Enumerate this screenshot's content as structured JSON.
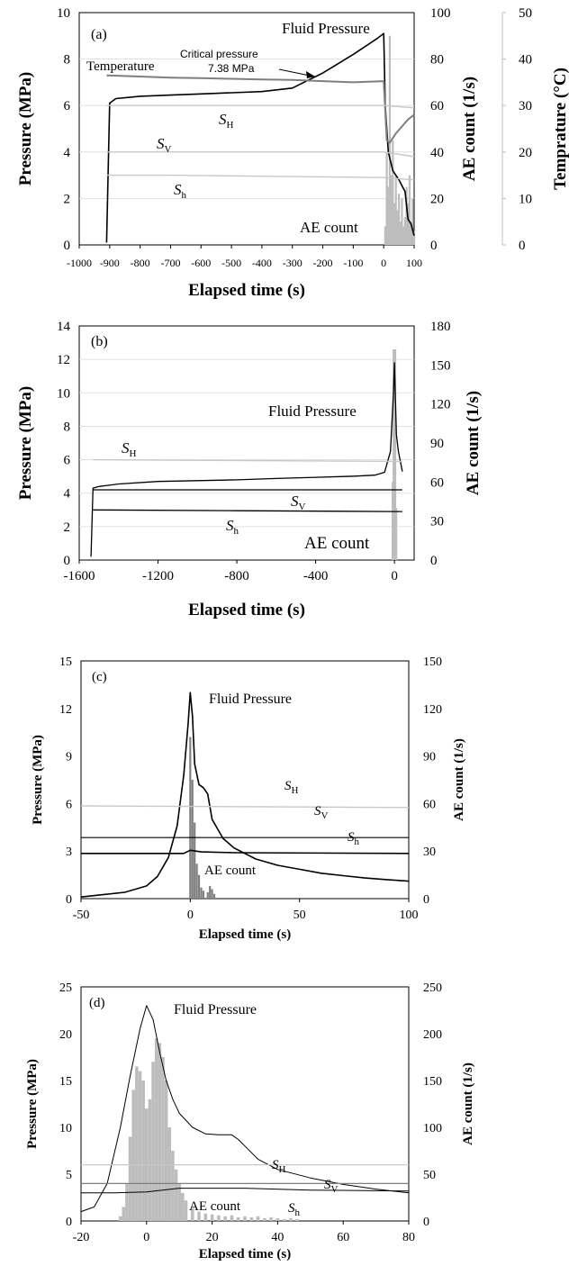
{
  "chart_data": [
    {
      "type": "line",
      "panel": "(a)",
      "xlabel": "Elapsed time (s)",
      "ylabel": "Pressure (MPa)",
      "y2label": "AE count (1/s)",
      "y3label": "Temprature (°C)",
      "xlim": [
        -1000,
        100
      ],
      "ylim": [
        0,
        10
      ],
      "y2lim": [
        0,
        100
      ],
      "y3lim": [
        0,
        50
      ],
      "xticks": [
        "-1000",
        "-900",
        "-800",
        "-700",
        "-600",
        "-500",
        "-400",
        "-300",
        "-200",
        "-100",
        "0",
        "100"
      ],
      "yticks": [
        "0",
        "2",
        "4",
        "6",
        "8",
        "10"
      ],
      "y2ticks": [
        "0",
        "20",
        "40",
        "60",
        "80",
        "100"
      ],
      "y3ticks": [
        "0",
        "10",
        "20",
        "30",
        "40",
        "50"
      ],
      "annotations": {
        "fluid": "Fluid Pressure",
        "temperature": "Temperature",
        "critical": "Critical pressure",
        "critical_value": "7.38 MPa",
        "SH_main": "S",
        "SH_sub": "H",
        "SV_main": "S",
        "SV_sub": "V",
        "Sh_main": "S",
        "Sh_sub": "h",
        "ae": "AE count"
      },
      "series": [
        {
          "key": "fluid",
          "color": "#000000",
          "x": [
            -910,
            -900,
            -880,
            -800,
            -700,
            -600,
            -500,
            -400,
            -300,
            -200,
            -100,
            -20,
            0,
            5,
            15,
            30,
            50,
            70,
            80,
            90,
            100
          ],
          "y": [
            0.1,
            6.1,
            6.3,
            6.4,
            6.45,
            6.5,
            6.55,
            6.6,
            6.75,
            7.4,
            8.2,
            8.9,
            9.1,
            6.0,
            4.0,
            3.2,
            2.8,
            2.3,
            1.1,
            0.9,
            0.4
          ]
        },
        {
          "key": "temperature",
          "color": "#7f7f7f",
          "x": [
            -910,
            -800,
            -700,
            -600,
            -500,
            -400,
            -300,
            -200,
            -100,
            0,
            10,
            20,
            40,
            60,
            80,
            100
          ],
          "y": [
            7.3,
            7.25,
            7.2,
            7.18,
            7.15,
            7.12,
            7.1,
            7.05,
            7.0,
            7.05,
            4.5,
            4.4,
            4.8,
            5.1,
            5.4,
            5.6
          ]
        },
        {
          "key": "SH",
          "color": "#c8c8c8",
          "x": [
            -910,
            0,
            100
          ],
          "y": [
            6.0,
            6.0,
            5.9
          ]
        },
        {
          "key": "SV",
          "color": "#c8c8c8",
          "x": [
            -910,
            0,
            100
          ],
          "y": [
            4.0,
            4.0,
            3.8
          ]
        },
        {
          "key": "Sh",
          "color": "#c8c8c8",
          "x": [
            -910,
            -700,
            0,
            100
          ],
          "y": [
            3.0,
            3.0,
            2.9,
            2.8
          ]
        }
      ],
      "ae": {
        "x": [
          5,
          10,
          15,
          20,
          25,
          30,
          35,
          40,
          45,
          50,
          55,
          60,
          65,
          70,
          75,
          80,
          85,
          90,
          95,
          100
        ],
        "y": [
          8,
          40,
          25,
          90,
          30,
          45,
          18,
          30,
          15,
          22,
          10,
          20,
          8,
          12,
          25,
          18,
          30,
          10,
          20,
          6
        ]
      }
    },
    {
      "type": "line",
      "panel": "(b)",
      "xlabel": "Elapsed time (s)",
      "ylabel": "Pressure (MPa)",
      "y2label": "AE count (1/s)",
      "xlim": [
        -1600,
        100
      ],
      "ylim": [
        0,
        14
      ],
      "y2lim": [
        0,
        180
      ],
      "xticks": [
        "-1600",
        "-1200",
        "-800",
        "-400",
        "0"
      ],
      "yticks": [
        "0",
        "2",
        "4",
        "6",
        "8",
        "10",
        "12",
        "14"
      ],
      "y2ticks": [
        "0",
        "30",
        "60",
        "90",
        "120",
        "150",
        "180"
      ],
      "annotations": {
        "fluid": "Fluid Pressure",
        "SH_main": "S",
        "SH_sub": "H",
        "SV_main": "S",
        "SV_sub": "V",
        "Sh_main": "S",
        "Sh_sub": "h",
        "ae": "AE count"
      },
      "series": [
        {
          "key": "fluid",
          "color": "#000000",
          "x": [
            -1540,
            -1530,
            -1500,
            -1400,
            -1200,
            -1000,
            -800,
            -600,
            -400,
            -200,
            -100,
            -50,
            -20,
            -5,
            0,
            10,
            20,
            40
          ],
          "y": [
            0.2,
            4.3,
            4.4,
            4.55,
            4.7,
            4.75,
            4.8,
            4.88,
            4.95,
            5.02,
            5.08,
            5.25,
            6.5,
            10.0,
            11.8,
            7.5,
            6.5,
            5.3
          ]
        },
        {
          "key": "SV",
          "color": "#000000",
          "x": [
            -1530,
            40
          ],
          "y": [
            4.2,
            4.2
          ]
        },
        {
          "key": "Sh",
          "color": "#000000",
          "x": [
            -1530,
            -800,
            0,
            40
          ],
          "y": [
            3.0,
            2.95,
            2.9,
            2.9
          ]
        },
        {
          "key": "SH",
          "color": "#c8c8c8",
          "x": [
            -1530,
            40
          ],
          "y": [
            6.0,
            5.9
          ]
        }
      ],
      "ae": {
        "x": [
          -5,
          0,
          5
        ],
        "y": [
          60,
          162,
          40
        ]
      }
    },
    {
      "type": "line",
      "panel": "(c)",
      "xlabel": "Elapsed time (s)",
      "ylabel": "Pressure (MPa)",
      "y2label": "AE count (1/s)",
      "xlim": [
        -50,
        100
      ],
      "ylim": [
        0,
        15
      ],
      "y2lim": [
        0,
        150
      ],
      "xticks": [
        "-50",
        "0",
        "50",
        "100"
      ],
      "yticks": [
        "0",
        "3",
        "6",
        "9",
        "12",
        "15"
      ],
      "y2ticks": [
        "0",
        "30",
        "60",
        "90",
        "120",
        "150"
      ],
      "annotations": {
        "fluid": "Fluid Pressure",
        "SH_main": "S",
        "SH_sub": "H",
        "SV_main": "S",
        "SV_sub": "V",
        "Sh_main": "S",
        "Sh_sub": "h",
        "ae": "AE count"
      },
      "series": [
        {
          "key": "fluid",
          "color": "#000000",
          "x": [
            -50,
            -40,
            -30,
            -20,
            -15,
            -10,
            -6,
            -3,
            -1,
            0,
            1,
            2,
            4,
            6,
            8,
            10,
            15,
            20,
            30,
            40,
            50,
            60,
            70,
            80,
            90,
            100
          ],
          "y": [
            0.1,
            0.25,
            0.4,
            0.8,
            1.4,
            2.6,
            4.6,
            7.8,
            11.0,
            13.0,
            11.5,
            8.5,
            7.2,
            7.0,
            6.6,
            5.0,
            3.8,
            3.2,
            2.5,
            2.1,
            1.85,
            1.6,
            1.45,
            1.3,
            1.2,
            1.1
          ]
        },
        {
          "key": "SH",
          "color": "#c8c8c8",
          "x": [
            -50,
            100
          ],
          "y": [
            5.85,
            5.75
          ]
        },
        {
          "key": "SV",
          "color": "#000000",
          "x": [
            -50,
            100
          ],
          "y": [
            3.85,
            3.85
          ]
        },
        {
          "key": "Sh",
          "color": "#000000",
          "x": [
            -50,
            -3,
            0,
            5,
            20,
            100
          ],
          "y": [
            2.85,
            2.85,
            3.05,
            2.95,
            2.9,
            2.85
          ]
        }
      ],
      "ae": {
        "x": [
          0,
          1,
          2,
          3,
          4,
          5,
          6,
          8,
          9,
          10,
          11
        ],
        "y": [
          102,
          75,
          48,
          22,
          15,
          7,
          5,
          4,
          8,
          6,
          3
        ]
      }
    },
    {
      "type": "line",
      "panel": "(d)",
      "xlabel": "Elapsed time (s)",
      "ylabel": "Pressure (MPa)",
      "y2label": "AE count (1/s)",
      "xlim": [
        -20,
        80
      ],
      "ylim": [
        0,
        25
      ],
      "y2lim": [
        0,
        250
      ],
      "xticks": [
        "-20",
        "0",
        "20",
        "40",
        "60",
        "80"
      ],
      "yticks": [
        "0",
        "5",
        "10",
        "15",
        "20",
        "25"
      ],
      "y2ticks": [
        "0",
        "50",
        "100",
        "150",
        "200",
        "250"
      ],
      "annotations": {
        "fluid": "Fluid Pressure",
        "SH_main": "S",
        "SH_sub": "H",
        "SV_main": "S",
        "SV_sub": "V",
        "Sh_main": "S",
        "Sh_sub": "h",
        "ae": "AE count"
      },
      "series": [
        {
          "key": "fluid",
          "color": "#000000",
          "x": [
            -20,
            -16,
            -12,
            -8,
            -5,
            -2,
            0,
            2,
            4,
            6,
            8,
            10,
            14,
            18,
            22,
            26,
            28,
            30,
            34,
            40,
            50,
            60,
            70,
            80
          ],
          "y": [
            1.0,
            1.5,
            4.0,
            10.0,
            15.5,
            20.5,
            23.0,
            21.5,
            18.0,
            15.0,
            13.0,
            11.5,
            10.0,
            9.3,
            9.2,
            9.2,
            8.7,
            8.0,
            6.6,
            5.5,
            4.6,
            3.9,
            3.4,
            3.0
          ]
        },
        {
          "key": "SH",
          "color": "#c8c8c8",
          "x": [
            -20,
            80
          ],
          "y": [
            6.0,
            6.0
          ]
        },
        {
          "key": "SV",
          "color": "#7f7f7f",
          "x": [
            -20,
            80
          ],
          "y": [
            4.0,
            4.0
          ]
        },
        {
          "key": "Sh",
          "color": "#000000",
          "x": [
            -20,
            -10,
            0,
            10,
            20,
            30,
            50,
            80
          ],
          "y": [
            3.0,
            3.0,
            3.1,
            3.5,
            3.5,
            3.5,
            3.3,
            3.2
          ]
        }
      ],
      "ae": {
        "x": [
          -8,
          -7,
          -6,
          -5,
          -4,
          -3,
          -2,
          -1,
          0,
          1,
          2,
          3,
          4,
          5,
          6,
          7,
          8,
          9,
          10,
          11,
          12,
          14,
          16,
          18,
          20,
          22,
          24,
          26,
          28,
          30,
          32,
          34,
          36,
          38,
          40,
          42,
          44,
          46
        ],
        "y": [
          5,
          15,
          40,
          90,
          140,
          165,
          160,
          150,
          120,
          130,
          170,
          195,
          190,
          175,
          150,
          100,
          75,
          55,
          40,
          30,
          22,
          14,
          10,
          8,
          7,
          6,
          5,
          6,
          4,
          5,
          4,
          5,
          3,
          4,
          3,
          2,
          3,
          2
        ]
      }
    }
  ]
}
